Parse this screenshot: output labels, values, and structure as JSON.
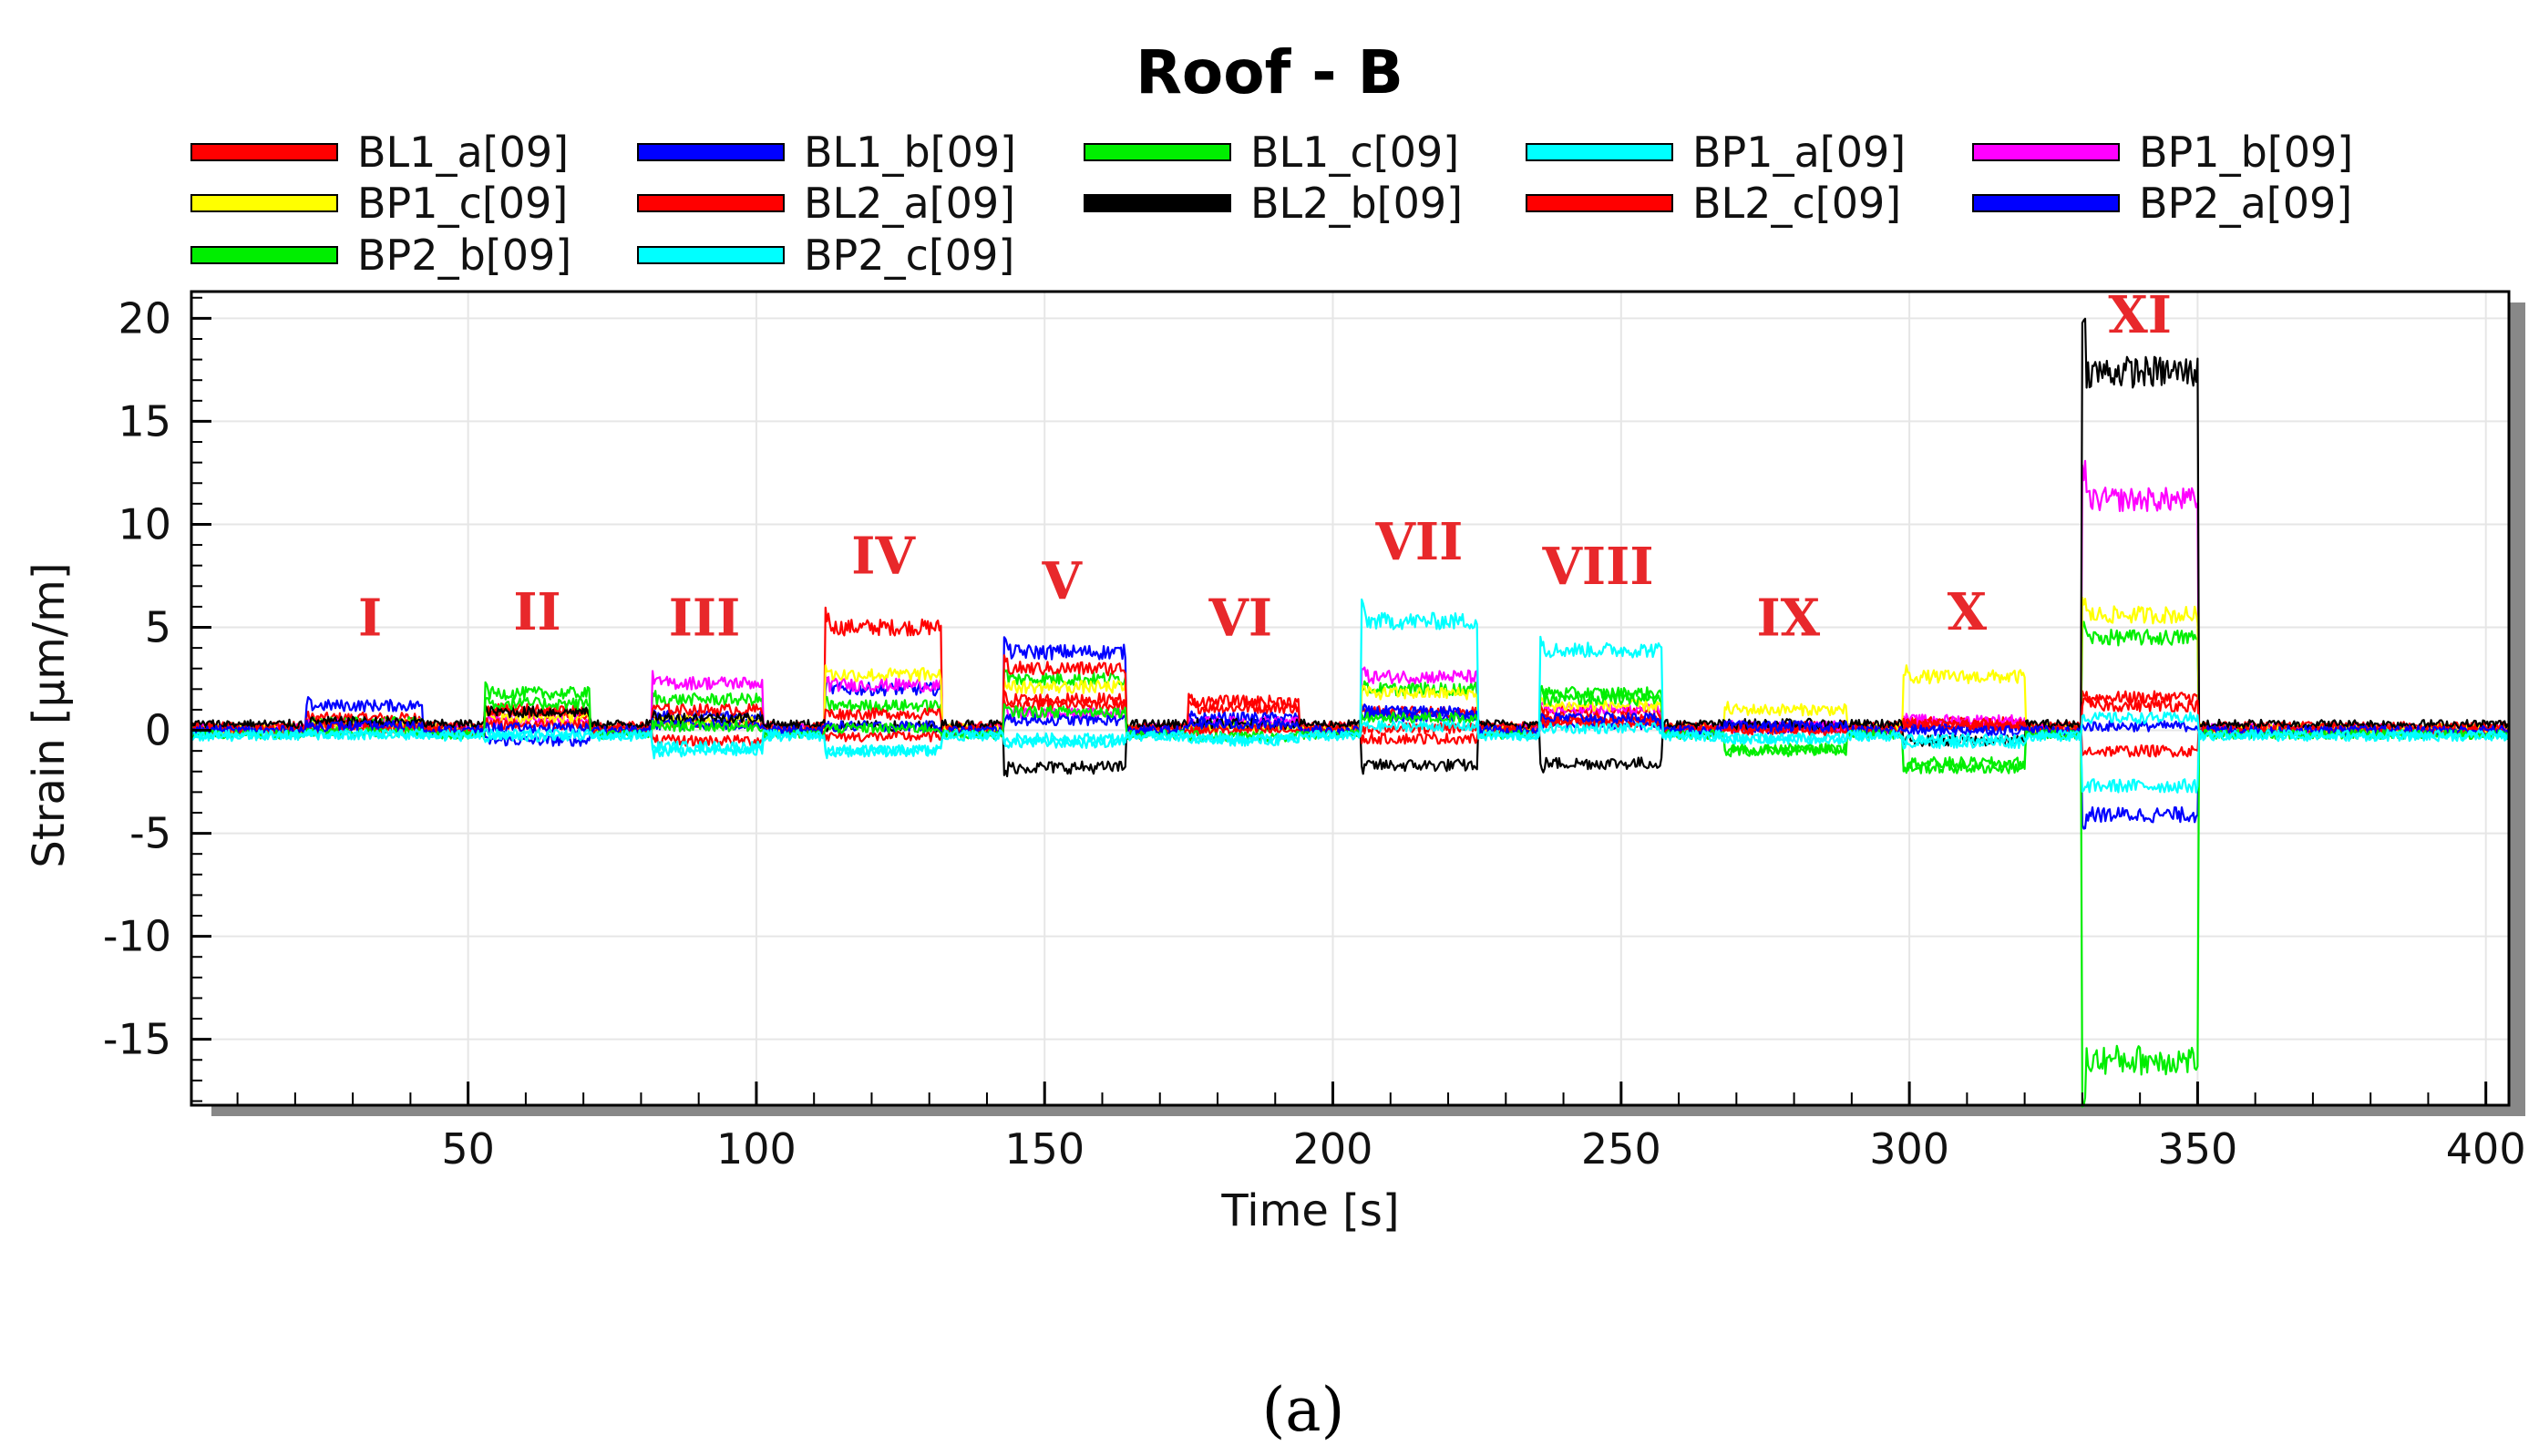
{
  "chart_data": {
    "type": "line",
    "title": "Roof - B",
    "xlabel": "Time [s]",
    "ylabel": "Strain [µm/m]",
    "xlim": [
      2,
      404
    ],
    "ylim": [
      -18.2,
      21.3
    ],
    "xticks": [
      50,
      100,
      150,
      200,
      250,
      300,
      350,
      400
    ],
    "yticks": [
      -15,
      -10,
      -5,
      0,
      5,
      10,
      15,
      20
    ],
    "xtick_labels": [
      "50",
      "100",
      "150",
      "200",
      "250",
      "300",
      "350",
      "400"
    ],
    "ytick_labels": [
      "-15",
      "-10",
      "-5",
      "0",
      "5",
      "10",
      "15",
      "20"
    ],
    "grid": true,
    "legend_position": "top",
    "caption": "(a)",
    "load_stages": [
      {
        "label": "I",
        "start": 22,
        "end": 42,
        "label_x": 33,
        "label_y": 4.6
      },
      {
        "label": "II",
        "start": 53,
        "end": 71,
        "label_x": 62,
        "label_y": 4.9
      },
      {
        "label": "III",
        "start": 82,
        "end": 101,
        "label_x": 91,
        "label_y": 4.6
      },
      {
        "label": "IV",
        "start": 112,
        "end": 132,
        "label_x": 122,
        "label_y": 7.6
      },
      {
        "label": "V",
        "start": 143,
        "end": 164,
        "label_x": 153,
        "label_y": 6.4
      },
      {
        "label": "VI",
        "start": 175,
        "end": 194,
        "label_x": 184,
        "label_y": 4.6
      },
      {
        "label": "VII",
        "start": 205,
        "end": 225,
        "label_x": 215,
        "label_y": 8.3
      },
      {
        "label": "VIII",
        "start": 236,
        "end": 257,
        "label_x": 246,
        "label_y": 7.1
      },
      {
        "label": "IX",
        "start": 268,
        "end": 289,
        "label_x": 279,
        "label_y": 4.6
      },
      {
        "label": "X",
        "start": 299,
        "end": 320,
        "label_x": 310,
        "label_y": 4.9
      },
      {
        "label": "XI",
        "start": 330,
        "end": 350,
        "label_x": 340,
        "label_y": 19.3
      }
    ],
    "series": [
      {
        "name": "BL1_a[09]",
        "color": "#ff0000",
        "levels": [
          0.6,
          0.8,
          0.4,
          5.0,
          1.2,
          1.1,
          0.9,
          0.9,
          0.2,
          0.4,
          1.6
        ],
        "baseline": 0.1
      },
      {
        "name": "BL1_b[09]",
        "color": "#0000ff",
        "levels": [
          1.2,
          -0.5,
          0.7,
          2.0,
          3.8,
          0.6,
          0.9,
          0.3,
          0.1,
          0.2,
          0.2
        ],
        "baseline": 0.0
      },
      {
        "name": "BL1_c[09]",
        "color": "#00ee00",
        "levels": [
          0.4,
          1.8,
          1.5,
          1.2,
          2.5,
          0.2,
          2.0,
          1.8,
          -0.9,
          -1.8,
          4.5
        ],
        "baseline": -0.1
      },
      {
        "name": "BP1_a[09]",
        "color": "#00ffff",
        "levels": [
          -0.2,
          -0.3,
          -0.8,
          -1.0,
          -0.6,
          -0.5,
          5.3,
          3.9,
          -0.4,
          -0.4,
          -2.7
        ],
        "baseline": -0.2
      },
      {
        "name": "BP1_b[09]",
        "color": "#ff00ff",
        "levels": [
          0.3,
          0.5,
          2.3,
          2.2,
          0.8,
          0.4,
          2.6,
          1.0,
          0.2,
          0.5,
          11.2
        ],
        "baseline": 0.1
      },
      {
        "name": "BP1_c[09]",
        "color": "#ffff00",
        "levels": [
          0.3,
          0.6,
          0.5,
          2.7,
          2.1,
          0.2,
          1.8,
          1.2,
          1.0,
          2.6,
          5.6
        ],
        "baseline": 0.1
      },
      {
        "name": "BL2_a[09]",
        "color": "#ff0000",
        "levels": [
          0.3,
          1.0,
          1.0,
          0.8,
          3.0,
          1.4,
          0.1,
          0.5,
          0.1,
          0.3,
          -1.0
        ],
        "baseline": 0.2
      },
      {
        "name": "BL2_b[09]",
        "color": "#000000",
        "levels": [
          0.4,
          0.9,
          0.6,
          0.2,
          -1.8,
          0.3,
          -1.7,
          -1.6,
          0.3,
          -0.5,
          17.4
        ],
        "baseline": 0.3
      },
      {
        "name": "BL2_c[09]",
        "color": "#ff0000",
        "levels": [
          0.1,
          0.3,
          -0.5,
          -0.3,
          1.5,
          0.0,
          -0.4,
          0.4,
          0.0,
          0.2,
          1.2
        ],
        "baseline": 0.0
      },
      {
        "name": "BP2_a[09]",
        "color": "#0000ff",
        "levels": [
          0.2,
          0.1,
          0.3,
          0.2,
          0.5,
          0.3,
          0.7,
          0.6,
          0.2,
          0.0,
          -4.1
        ],
        "baseline": 0.0
      },
      {
        "name": "BP2_b[09]",
        "color": "#00ee00",
        "levels": [
          -0.1,
          1.3,
          0.2,
          0.1,
          0.9,
          -0.3,
          0.6,
          1.5,
          -1.0,
          -1.6,
          -16.0
        ],
        "baseline": -0.2
      },
      {
        "name": "BP2_c[09]",
        "color": "#00ffff",
        "levels": [
          -0.2,
          -0.2,
          -1.0,
          -1.0,
          -0.4,
          -0.4,
          0.2,
          0.1,
          -0.4,
          -0.6,
          0.6
        ],
        "baseline": -0.3
      }
    ]
  }
}
